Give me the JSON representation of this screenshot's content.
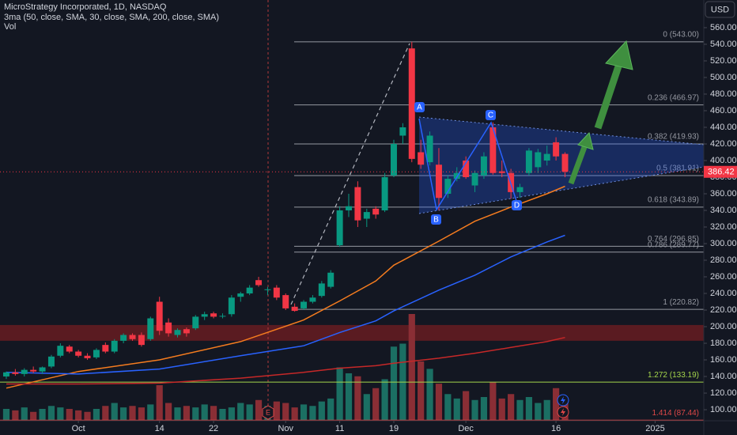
{
  "chart_data": {
    "type": "candlestick",
    "title": "MicroStrategy Incorporated, 1D, NASDAQ",
    "subtitle": "3ma (50, close, SMA, 30, close, SMA, 200, close, SMA)",
    "volume_label": "Vol",
    "currency": "USD",
    "earnings_marker": "E",
    "pattern_labels": [
      "A",
      "B",
      "C",
      "D"
    ],
    "x": [
      0,
      1,
      2,
      3,
      4,
      5,
      6,
      7,
      8,
      9,
      10,
      11,
      12,
      13,
      14,
      15,
      16,
      17,
      18,
      19,
      20,
      21,
      22,
      23,
      24,
      25,
      26,
      27,
      28,
      29,
      30,
      31,
      32,
      33,
      34,
      35,
      36,
      37,
      38,
      39,
      40,
      41,
      42,
      43,
      44,
      45,
      46,
      47,
      48,
      49,
      50,
      51,
      52,
      53,
      54,
      55,
      56,
      57,
      58,
      59,
      60,
      61,
      62
    ],
    "candles": {
      "open": [
        140,
        145,
        143,
        148,
        146,
        152,
        165,
        176,
        170,
        165,
        163,
        178,
        170,
        183,
        190,
        190,
        185,
        230,
        205,
        190,
        197,
        198,
        212,
        216,
        213,
        215,
        236,
        240,
        256,
        244,
        247,
        238,
        224,
        222,
        230,
        237,
        248,
        298,
        340,
        368,
        330,
        342,
        340,
        382,
        430,
        535,
        410,
        398,
        395,
        360,
        378,
        400,
        370,
        382,
        440,
        387,
        385,
        362,
        385,
        392,
        400,
        422,
        408
      ],
      "high": [
        146,
        149,
        150,
        152,
        152,
        166,
        180,
        178,
        172,
        168,
        174,
        181,
        185,
        192,
        192,
        193,
        212,
        236,
        210,
        198,
        199,
        214,
        218,
        218,
        216,
        238,
        242,
        250,
        260,
        248,
        250,
        240,
        228,
        232,
        238,
        255,
        268,
        345,
        360,
        375,
        342,
        345,
        385,
        425,
        445,
        543,
        425,
        435,
        415,
        382,
        392,
        405,
        388,
        410,
        446,
        400,
        390,
        372,
        415,
        414,
        418,
        428,
        410
      ],
      "low": [
        137,
        141,
        140,
        144,
        143,
        150,
        163,
        168,
        163,
        160,
        161,
        168,
        168,
        180,
        183,
        176,
        183,
        190,
        188,
        187,
        188,
        196,
        208,
        210,
        210,
        212,
        230,
        238,
        248,
        238,
        232,
        220,
        218,
        220,
        228,
        235,
        246,
        296,
        332,
        320,
        320,
        330,
        338,
        380,
        420,
        398,
        390,
        394,
        340,
        355,
        375,
        378,
        362,
        378,
        383,
        380,
        354,
        355,
        382,
        385,
        394,
        400,
        380
      ],
      "close": [
        145,
        143,
        148,
        146,
        151,
        164,
        177,
        170,
        165,
        162,
        172,
        170,
        183,
        190,
        185,
        178,
        210,
        195,
        192,
        196,
        192,
        212,
        215,
        212,
        213,
        235,
        240,
        247,
        250,
        245,
        235,
        222,
        219,
        230,
        235,
        252,
        265,
        340,
        345,
        328,
        338,
        335,
        380,
        420,
        440,
        402,
        395,
        430,
        355,
        378,
        385,
        380,
        385,
        405,
        385,
        385,
        362,
        368,
        412,
        410,
        408,
        405,
        386.42
      ]
    },
    "volume": {
      "vlim": [
        0,
        80
      ],
      "values": [
        8,
        7,
        9,
        6,
        8,
        10,
        9,
        8,
        7,
        6,
        8,
        10,
        12,
        9,
        10,
        9,
        11,
        24,
        12,
        9,
        10,
        9,
        11,
        10,
        8,
        9,
        12,
        11,
        14,
        10,
        13,
        12,
        9,
        11,
        10,
        13,
        15,
        36,
        32,
        30,
        18,
        22,
        28,
        50,
        52,
        72,
        40,
        35,
        25,
        18,
        15,
        20,
        14,
        16,
        26,
        15,
        18,
        14,
        16,
        12,
        14,
        22,
        13
      ],
      "up_color": "#1b6f63",
      "down_color": "#8a2e35"
    },
    "up_color": "#089981",
    "down_color": "#f23645",
    "moving_averages": [
      {
        "color": "#f57c1f",
        "x": [
          0,
          8,
          17,
          26,
          33,
          37,
          41,
          43,
          48,
          52,
          56,
          60,
          62
        ],
        "values": [
          126,
          146,
          160,
          182,
          208,
          231,
          255,
          274,
          303,
          327,
          344,
          360,
          369
        ]
      },
      {
        "color": "#2962ff",
        "x": [
          0,
          8,
          17,
          26,
          33,
          37,
          41,
          43,
          48,
          52,
          56,
          60,
          62
        ],
        "values": [
          145,
          143,
          149,
          165,
          177,
          193,
          207,
          219,
          244,
          262,
          284,
          302,
          310
        ]
      },
      {
        "color": "#c62828",
        "x": [
          0,
          8,
          17,
          26,
          33,
          37,
          41,
          43,
          48,
          52,
          56,
          60,
          62
        ],
        "values": [
          131,
          131,
          132,
          138,
          145,
          150,
          153,
          156,
          162,
          168,
          175,
          182,
          187
        ]
      }
    ],
    "fib_levels": [
      {
        "label": "0 (543.00)",
        "value": 543,
        "color": "#9598a1"
      },
      {
        "label": "0.236 (466.97)",
        "value": 466.97,
        "color": "#9598a1"
      },
      {
        "label": "0.382 (419.93)",
        "value": 419.93,
        "color": "#9598a1"
      },
      {
        "label": "0.5 (381.91)",
        "value": 381.91,
        "color": "#9598a1"
      },
      {
        "label": "0.618 (343.89)",
        "value": 343.89,
        "color": "#9598a1"
      },
      {
        "label": "0.764 (296.85)",
        "value": 296.85,
        "color": "#9598a1"
      },
      {
        "label": "0.786 (289.77)",
        "value": 289.77,
        "color": "#9598a1"
      },
      {
        "label": "1 (220.82)",
        "value": 220.82,
        "color": "#9598a1"
      },
      {
        "label": "1.272 (133.19)",
        "value": 133.19,
        "color": "#a5d64b"
      },
      {
        "label": "1.414 (87.44)",
        "value": 87.44,
        "color": "#e04848"
      }
    ],
    "zone": [
      183,
      202
    ],
    "ylim": [
      86.7,
      593.3
    ],
    "yticks": [
      {
        "value": 100,
        "label": "100.00"
      },
      {
        "value": 120,
        "label": "120.00"
      },
      {
        "value": 140,
        "label": "140.00"
      },
      {
        "value": 160,
        "label": "160.00"
      },
      {
        "value": 180,
        "label": "180.00"
      },
      {
        "value": 200,
        "label": "200.00"
      },
      {
        "value": 220,
        "label": "220.00"
      },
      {
        "value": 240,
        "label": "240.00"
      },
      {
        "value": 260,
        "label": "260.00"
      },
      {
        "value": 280,
        "label": "280.00"
      },
      {
        "value": 300,
        "label": "300.00"
      },
      {
        "value": 320,
        "label": "320.00"
      },
      {
        "value": 340,
        "label": "340.00"
      },
      {
        "value": 360,
        "label": "360.00"
      },
      {
        "value": 380,
        "label": "380.00"
      },
      {
        "value": 400,
        "label": "400.00"
      },
      {
        "value": 420,
        "label": "420.00"
      },
      {
        "value": 440,
        "label": "440.00"
      },
      {
        "value": 460,
        "label": "460.00"
      },
      {
        "value": 480,
        "label": "480.00"
      },
      {
        "value": 500,
        "label": "500.00"
      },
      {
        "value": 520,
        "label": "520.00"
      },
      {
        "value": 540,
        "label": "540.00"
      },
      {
        "value": 560,
        "label": "560.00"
      }
    ],
    "xlim": [
      -0.7,
      77.4
    ],
    "xticks": [
      {
        "value": 8,
        "label": "Oct"
      },
      {
        "value": 17,
        "label": "14"
      },
      {
        "value": 23,
        "label": "22"
      },
      {
        "value": 31,
        "label": "Nov"
      },
      {
        "value": 37,
        "label": "11"
      },
      {
        "value": 43,
        "label": "19"
      },
      {
        "value": 51,
        "label": "Dec"
      },
      {
        "value": 61,
        "label": "16"
      },
      {
        "value": 72,
        "label": "2025"
      }
    ]
  }
}
